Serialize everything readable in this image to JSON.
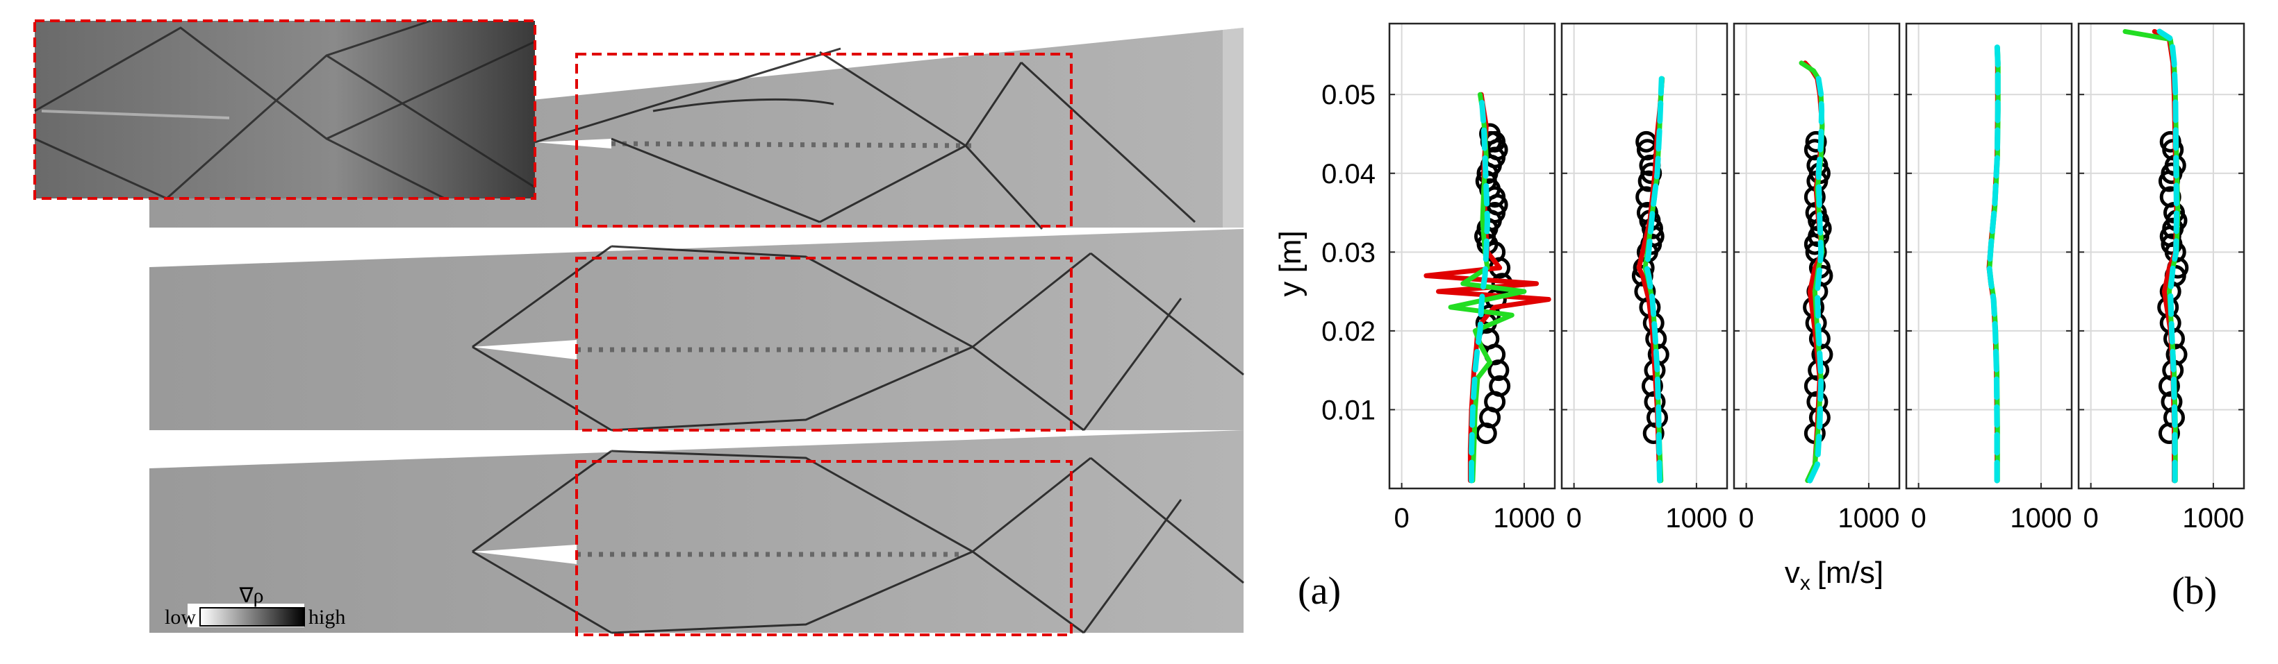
{
  "figure": {
    "panel_a_label": "(a)",
    "panel_b_label": "(b)",
    "colorbar": {
      "symbol": "∇ρ",
      "low_label": "low",
      "high_label": "high"
    }
  },
  "chart_data": {
    "type": "line",
    "ylabel": "y [m]",
    "xlabel": "v",
    "xlabel_subscript": "x",
    "xlabel_unit": "[m/s]",
    "xlim": [
      -100,
      1250
    ],
    "ylim": [
      0,
      0.059
    ],
    "yticks": [
      0.01,
      0.02,
      0.03,
      0.04,
      0.05
    ],
    "ytick_labels": [
      "0.01",
      "0.02",
      "0.03",
      "0.04",
      "0.05"
    ],
    "grid": true,
    "subplots": [
      {
        "xticks": [
          0,
          1000
        ],
        "xtick_labels": [
          "0",
          "1000"
        ],
        "series": [
          {
            "color": "#000000",
            "style": "markers",
            "x": [
              690,
              720,
              760,
              800,
              790,
              760,
              710,
              690,
              720,
              770,
              820,
              800,
              760,
              700,
              680,
              700,
              730,
              760,
              780,
              760,
              720,
              690,
              700,
              730,
              760,
              780,
              760,
              730,
              720
            ],
            "y": [
              0.007,
              0.009,
              0.011,
              0.013,
              0.015,
              0.017,
              0.019,
              0.021,
              0.022,
              0.024,
              0.026,
              0.028,
              0.03,
              0.031,
              0.032,
              0.033,
              0.034,
              0.035,
              0.036,
              0.037,
              0.038,
              0.039,
              0.04,
              0.041,
              0.042,
              0.043,
              0.044,
              0.044,
              0.045
            ]
          },
          {
            "color": "#e00000",
            "style": "solid",
            "x": [
              560,
              560,
              570,
              590,
              610,
              620,
              650,
              700,
              760,
              1200,
              300,
              1100,
              200,
              800,
              700,
              680,
              670,
              680,
              690,
              670,
              650
            ],
            "y": [
              0.001,
              0.005,
              0.01,
              0.015,
              0.018,
              0.02,
              0.021,
              0.022,
              0.023,
              0.024,
              0.025,
              0.026,
              0.027,
              0.028,
              0.03,
              0.035,
              0.04,
              0.043,
              0.046,
              0.048,
              0.05
            ]
          },
          {
            "color": "#22dd22",
            "style": "solid",
            "x": [
              580,
              590,
              600,
              620,
              720,
              650,
              600,
              900,
              400,
              1000,
              500,
              700,
              680,
              660,
              670,
              690,
              680,
              660,
              640
            ],
            "y": [
              0.001,
              0.005,
              0.01,
              0.014,
              0.016,
              0.018,
              0.02,
              0.022,
              0.023,
              0.025,
              0.026,
              0.028,
              0.03,
              0.034,
              0.038,
              0.042,
              0.045,
              0.048,
              0.05
            ]
          },
          {
            "color": "#00e5e5",
            "style": "dashed",
            "x": [
              570,
              570,
              580,
              600,
              620,
              640,
              650,
              660,
              680,
              690,
              700,
              690,
              680,
              670,
              660,
              650
            ],
            "y": [
              0.001,
              0.005,
              0.01,
              0.015,
              0.018,
              0.02,
              0.023,
              0.025,
              0.027,
              0.03,
              0.034,
              0.038,
              0.042,
              0.046,
              0.048,
              0.05
            ]
          }
        ]
      },
      {
        "xticks": [
          0,
          1000
        ],
        "xtick_labels": [
          "0",
          "1000"
        ],
        "series": [
          {
            "color": "#000000",
            "style": "markers",
            "x": [
              650,
              680,
              660,
              640,
              660,
              690,
              670,
              650,
              620,
              580,
              560,
              570,
              600,
              630,
              650,
              640,
              620,
              600,
              590,
              610,
              630,
              620,
              600,
              590
            ],
            "y": [
              0.007,
              0.009,
              0.011,
              0.013,
              0.015,
              0.017,
              0.019,
              0.021,
              0.023,
              0.025,
              0.027,
              0.028,
              0.03,
              0.031,
              0.032,
              0.033,
              0.034,
              0.035,
              0.037,
              0.039,
              0.04,
              0.041,
              0.043,
              0.044
            ]
          },
          {
            "color": "#e00000",
            "style": "solid",
            "x": [
              700,
              690,
              680,
              660,
              640,
              610,
              560,
              530,
              560,
              620,
              660,
              680,
              700,
              710,
              720
            ],
            "y": [
              0.001,
              0.005,
              0.01,
              0.015,
              0.02,
              0.024,
              0.027,
              0.028,
              0.03,
              0.034,
              0.04,
              0.045,
              0.048,
              0.05,
              0.052
            ]
          },
          {
            "color": "#22dd22",
            "style": "solid",
            "x": [
              710,
              700,
              690,
              680,
              660,
              640,
              600,
              580,
              600,
              640,
              680,
              700,
              710,
              720
            ],
            "y": [
              0.001,
              0.005,
              0.01,
              0.015,
              0.02,
              0.024,
              0.027,
              0.028,
              0.03,
              0.035,
              0.04,
              0.046,
              0.05,
              0.052
            ]
          },
          {
            "color": "#00e5e5",
            "style": "dashed",
            "x": [
              700,
              695,
              690,
              680,
              660,
              640,
              610,
              595,
              610,
              640,
              680,
              700,
              710,
              715
            ],
            "y": [
              0.001,
              0.005,
              0.01,
              0.015,
              0.02,
              0.024,
              0.027,
              0.028,
              0.03,
              0.035,
              0.04,
              0.046,
              0.05,
              0.052
            ]
          }
        ]
      },
      {
        "xticks": [
          0,
          1000
        ],
        "xtick_labels": [
          "0",
          "1000"
        ],
        "series": [
          {
            "color": "#000000",
            "style": "markers",
            "x": [
              560,
              600,
              580,
              560,
              590,
              620,
              600,
              570,
              550,
              580,
              620,
              600,
              570,
              560,
              590,
              610,
              590,
              570,
              560,
              580,
              600,
              580,
              560,
              570
            ],
            "y": [
              0.007,
              0.009,
              0.011,
              0.013,
              0.015,
              0.017,
              0.019,
              0.021,
              0.023,
              0.025,
              0.027,
              0.028,
              0.03,
              0.031,
              0.032,
              0.033,
              0.034,
              0.035,
              0.037,
              0.039,
              0.04,
              0.041,
              0.043,
              0.044
            ]
          },
          {
            "color": "#e00000",
            "style": "solid",
            "x": [
              500,
              560,
              580,
              600,
              560,
              520,
              560,
              620,
              590,
              570,
              600,
              620,
              600,
              580,
              540,
              480
            ],
            "y": [
              0.001,
              0.003,
              0.008,
              0.014,
              0.02,
              0.025,
              0.028,
              0.03,
              0.034,
              0.038,
              0.042,
              0.046,
              0.05,
              0.052,
              0.053,
              0.054
            ]
          },
          {
            "color": "#22dd22",
            "style": "solid",
            "x": [
              500,
              560,
              590,
              610,
              580,
              560,
              590,
              620,
              600,
              580,
              610,
              620,
              610,
              590,
              550,
              450
            ],
            "y": [
              0.001,
              0.003,
              0.008,
              0.014,
              0.02,
              0.025,
              0.028,
              0.03,
              0.034,
              0.038,
              0.042,
              0.046,
              0.05,
              0.052,
              0.053,
              0.054
            ]
          },
          {
            "color": "#00e5e5",
            "style": "dashed",
            "x": [
              520,
              580,
              600,
              610,
              590,
              580,
              600,
              610,
              600,
              590,
              610,
              615,
              610,
              590
            ],
            "y": [
              0.001,
              0.003,
              0.008,
              0.014,
              0.02,
              0.025,
              0.028,
              0.03,
              0.034,
              0.04,
              0.044,
              0.048,
              0.05,
              0.052
            ]
          }
        ]
      },
      {
        "xticks": [
          0,
          1000
        ],
        "xtick_labels": [
          "0",
          "1000"
        ],
        "series": [
          {
            "color": "#e00000",
            "style": "solid",
            "x": [
              640,
              640,
              635,
              625,
              610,
              590,
              575,
              590,
              620,
              640,
              645,
              645,
              640
            ],
            "y": [
              0.001,
              0.008,
              0.015,
              0.02,
              0.024,
              0.026,
              0.028,
              0.031,
              0.036,
              0.042,
              0.048,
              0.054,
              0.056
            ]
          },
          {
            "color": "#22dd22",
            "style": "solid",
            "x": [
              645,
              645,
              640,
              630,
              615,
              595,
              580,
              595,
              625,
              645,
              650,
              650,
              645
            ],
            "y": [
              0.001,
              0.008,
              0.015,
              0.02,
              0.024,
              0.026,
              0.028,
              0.031,
              0.036,
              0.042,
              0.048,
              0.054,
              0.056
            ]
          },
          {
            "color": "#00e5e5",
            "style": "dashed",
            "x": [
              640,
              640,
              636,
              626,
              612,
              592,
              578,
              592,
              622,
              642,
              647,
              647,
              642
            ],
            "y": [
              0.001,
              0.008,
              0.015,
              0.02,
              0.024,
              0.026,
              0.028,
              0.031,
              0.036,
              0.042,
              0.048,
              0.054,
              0.056
            ]
          }
        ]
      },
      {
        "xticks": [
          0,
          1000
        ],
        "xtick_labels": [
          "0",
          "1000"
        ],
        "series": [
          {
            "color": "#000000",
            "style": "markers",
            "x": [
              640,
              680,
              660,
              640,
              670,
              700,
              680,
              650,
              630,
              650,
              690,
              710,
              690,
              660,
              650,
              670,
              700,
              680,
              650,
              640,
              660,
              690,
              670,
              650
            ],
            "y": [
              0.007,
              0.009,
              0.011,
              0.013,
              0.015,
              0.017,
              0.019,
              0.021,
              0.023,
              0.025,
              0.027,
              0.028,
              0.03,
              0.031,
              0.032,
              0.033,
              0.034,
              0.035,
              0.037,
              0.039,
              0.04,
              0.041,
              0.043,
              0.044
            ]
          },
          {
            "color": "#e00000",
            "style": "solid",
            "x": [
              680,
              680,
              670,
              650,
              600,
              640,
              690,
              700,
              690,
              680,
              670,
              640,
              520
            ],
            "y": [
              0.001,
              0.008,
              0.015,
              0.02,
              0.025,
              0.028,
              0.03,
              0.035,
              0.042,
              0.05,
              0.054,
              0.057,
              0.058
            ]
          },
          {
            "color": "#22dd22",
            "style": "solid",
            "x": [
              690,
              690,
              680,
              660,
              640,
              670,
              700,
              710,
              700,
              690,
              680,
              650,
              280
            ],
            "y": [
              0.001,
              0.008,
              0.015,
              0.02,
              0.025,
              0.028,
              0.03,
              0.035,
              0.042,
              0.05,
              0.054,
              0.057,
              0.058
            ]
          },
          {
            "color": "#00e5e5",
            "style": "dashed",
            "x": [
              685,
              685,
              675,
              660,
              650,
              670,
              695,
              700,
              695,
              690,
              680,
              660,
              560
            ],
            "y": [
              0.001,
              0.008,
              0.015,
              0.02,
              0.025,
              0.028,
              0.03,
              0.035,
              0.042,
              0.05,
              0.054,
              0.057,
              0.058
            ]
          }
        ]
      }
    ]
  }
}
